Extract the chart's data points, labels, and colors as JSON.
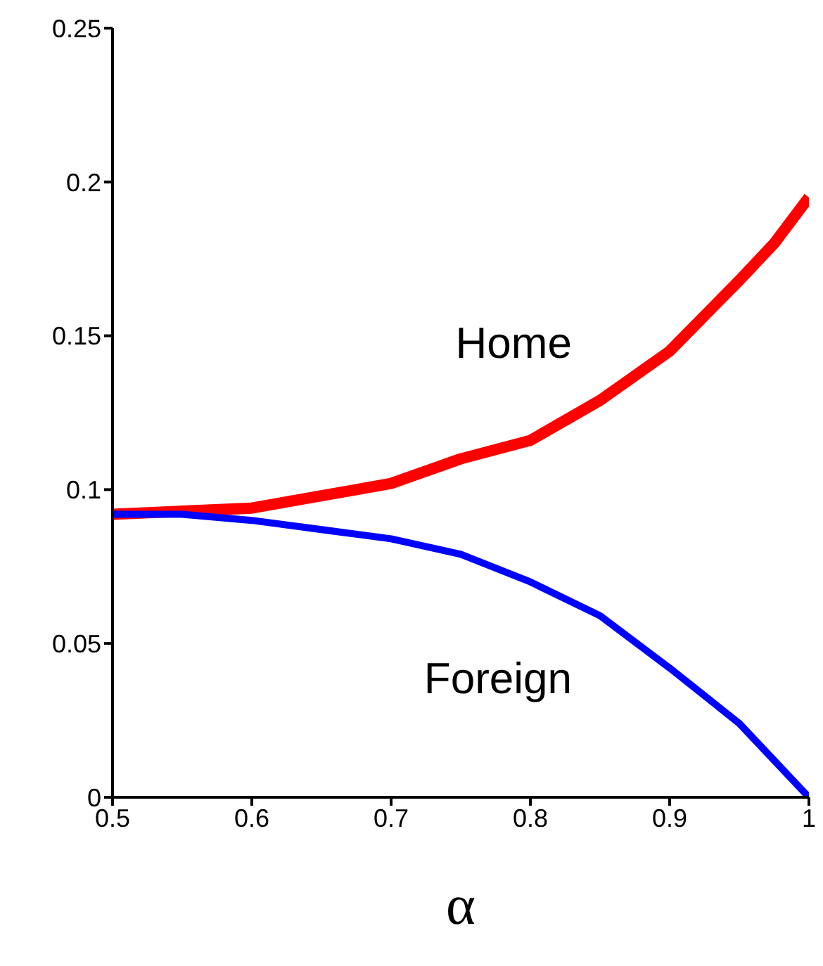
{
  "chart_data": {
    "type": "line",
    "xlabel": "α",
    "x": [
      0.5,
      0.55,
      0.6,
      0.65,
      0.7,
      0.75,
      0.8,
      0.85,
      0.9,
      0.95,
      0.975,
      1.0
    ],
    "series": [
      {
        "name": "Home",
        "color": "#ff0000",
        "values": [
          0.092,
          0.093,
          0.094,
          0.098,
          0.102,
          0.11,
          0.116,
          0.129,
          0.145,
          0.168,
          0.18,
          0.195
        ]
      },
      {
        "name": "Foreign",
        "color": "#0000ff",
        "values": [
          0.092,
          0.092,
          0.09,
          0.087,
          0.084,
          0.079,
          0.07,
          0.059,
          0.042,
          0.024,
          0.012,
          0
        ]
      }
    ],
    "xlim": [
      0.5,
      1
    ],
    "xticks": [
      0.5,
      0.6,
      0.7,
      0.8,
      0.9,
      1
    ],
    "ylim": [
      0,
      0.25
    ],
    "yticks": [
      0,
      0.05,
      0.1,
      0.15,
      0.2,
      0.25
    ],
    "grid": false,
    "legend": false,
    "marker": "none",
    "line_style": "solid"
  }
}
